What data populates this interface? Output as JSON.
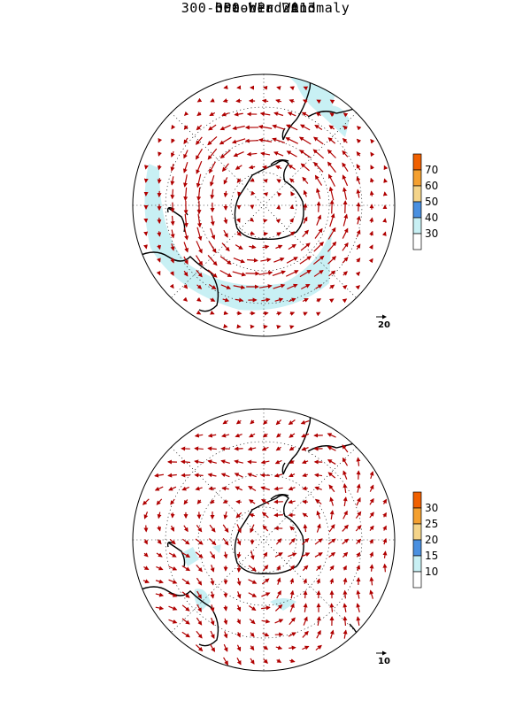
{
  "title": "October 2013",
  "panels": [
    {
      "title": "300-hPa Wind",
      "colorbar": {
        "labels": [
          "30",
          "40",
          "50",
          "60",
          "70"
        ],
        "colors": [
          "#ffffff",
          "#c8f0f4",
          "#4a90e0",
          "#f4d48a",
          "#f4a030",
          "#f06000"
        ]
      },
      "reference_vector_label": "20",
      "flow": "strong circumpolar westerly jet, shaded above 30 m/s in a ring over the South Atlantic and South Pacific"
    },
    {
      "title": "300-hPa Wind Anomaly",
      "colorbar": {
        "labels": [
          "10",
          "15",
          "20",
          "25",
          "30"
        ],
        "colors": [
          "#ffffff",
          "#c8f0f4",
          "#4a90e0",
          "#f4d48a",
          "#f4a030",
          "#f06000"
        ]
      },
      "reference_vector_label": "10",
      "flow": "weak anomalies, small patches above 10 m/s"
    }
  ],
  "colors": {
    "vector": "#b00000",
    "shade_light_blue": "#c8f0f4",
    "coast": "#000000",
    "grid": "#000000"
  }
}
